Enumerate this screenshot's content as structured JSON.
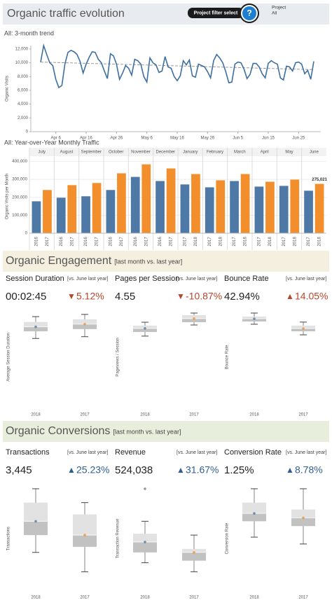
{
  "header": {
    "title": "Organic traffic evolution",
    "filter_button": "Project filter select",
    "help": "?",
    "filter_label": "Project",
    "filter_value": "All"
  },
  "chart_data": [
    {
      "type": "line",
      "title": "All: 3-month trend",
      "y_label": "Organic Visits",
      "color": "#3d6fa0",
      "trend_color": "#999",
      "x": [
        "Apr 1",
        "Apr 2",
        "Apr 3",
        "Apr 4",
        "Apr 5",
        "Apr 6",
        "Apr 7",
        "Apr 8",
        "Apr 9",
        "Apr 10",
        "Apr 11",
        "Apr 12",
        "Apr 13",
        "Apr 14",
        "Apr 15",
        "Apr 16",
        "Apr 17",
        "Apr 18",
        "Apr 19",
        "Apr 20",
        "Apr 21",
        "Apr 22",
        "Apr 23",
        "Apr 24",
        "Apr 25",
        "Apr 26",
        "Apr 27",
        "Apr 28",
        "Apr 29",
        "Apr 30",
        "May 1",
        "May 2",
        "May 3",
        "May 4",
        "May 5",
        "May 6",
        "May 7",
        "May 8",
        "May 9",
        "May 10",
        "May 11",
        "May 12",
        "May 13",
        "May 14",
        "May 15",
        "May 16",
        "May 17",
        "May 18",
        "May 19",
        "May 20",
        "May 21",
        "May 22",
        "May 23",
        "May 24",
        "May 25",
        "May 26",
        "May 27",
        "May 28",
        "May 29",
        "May 30",
        "May 31",
        "Jun 1",
        "Jun 2",
        "Jun 3",
        "Jun 4",
        "Jun 5",
        "Jun 6",
        "Jun 7",
        "Jun 8",
        "Jun 9",
        "Jun 10",
        "Jun 11",
        "Jun 12",
        "Jun 13",
        "Jun 14",
        "Jun 15",
        "Jun 16",
        "Jun 17",
        "Jun 18",
        "Jun 19",
        "Jun 20",
        "Jun 21",
        "Jun 22",
        "Jun 23",
        "Jun 24",
        "Jun 25",
        "Jun 26",
        "Jun 27",
        "Jun 28",
        "Jun 29",
        "Jun 30"
      ],
      "values": [
        10100,
        12500,
        11200,
        10000,
        9600,
        7600,
        6400,
        6700,
        9800,
        11500,
        11800,
        11600,
        11200,
        10200,
        8500,
        9800,
        10800,
        11600,
        11500,
        10500,
        10000,
        8800,
        7700,
        11300,
        11000,
        9800,
        7600,
        8500,
        9600,
        9200,
        8200,
        10500,
        10300,
        9800,
        8000,
        7200,
        10700,
        10000,
        9700,
        8600,
        8800,
        10900,
        9400,
        9200,
        8000,
        7400,
        8100,
        10300,
        9700,
        10400,
        8100,
        7900,
        9800,
        9600,
        9400,
        8700,
        7800,
        10300,
        11200,
        10700,
        10000,
        8700,
        7100,
        7200,
        9800,
        10100,
        10000,
        9100,
        7700,
        8300,
        9900,
        9900,
        9400,
        8400,
        7800,
        9900,
        10300,
        10000,
        9800,
        7800,
        7500,
        9500,
        9400,
        8800,
        10000,
        10100,
        9800,
        8400,
        8900,
        7600,
        10200
      ],
      "trend": [
        10100,
        9000
      ],
      "xticks": [
        "Apr 6",
        "Apr 16",
        "Apr 26",
        "May 6",
        "May 16",
        "May 26",
        "Jun 5",
        "Jun 15",
        "Jun 25"
      ],
      "ylim": [
        0,
        12500
      ],
      "yticks": [
        0,
        {
          "value": 2000,
          "label": "2,000"
        },
        {
          "value": 4000,
          "label": "4,000"
        },
        {
          "value": 6000,
          "label": "6,000"
        },
        {
          "value": 8000,
          "label": "8,000"
        },
        {
          "value": 10000,
          "label": "10,000"
        },
        {
          "value": 12000,
          "label": "12,000"
        }
      ]
    },
    {
      "type": "grouped_bar",
      "title": "All: Year-over-Year Monthly Traffic",
      "y_label": "Organic Visits per Month",
      "colors": [
        "#4e79a7",
        "#f28e2b"
      ],
      "ylim": [
        0,
        410000
      ],
      "yticks": [
        0,
        {
          "value": 100000,
          "label": "100,000"
        },
        {
          "value": 200000,
          "label": "200,000"
        },
        {
          "value": 300000,
          "label": "300,000"
        },
        {
          "value": 400000,
          "label": "400,000"
        }
      ],
      "grid": true,
      "groups": [
        {
          "label": "July",
          "bars": [
            {
              "year": "2016",
              "value": 178000
            },
            {
              "year": "2017",
              "value": 241000
            }
          ]
        },
        {
          "label": "August",
          "bars": [
            {
              "year": "2016",
              "value": 198000
            },
            {
              "year": "2017",
              "value": 268000
            }
          ]
        },
        {
          "label": "September",
          "bars": [
            {
              "year": "2016",
              "value": 206000
            },
            {
              "year": "2017",
              "value": 280000
            }
          ]
        },
        {
          "label": "October",
          "bars": [
            {
              "year": "2016",
              "value": 241000
            },
            {
              "year": "2017",
              "value": 334000
            }
          ]
        },
        {
          "label": "November",
          "bars": [
            {
              "year": "2016",
              "value": 314000
            },
            {
              "year": "2017",
              "value": 384000
            }
          ]
        },
        {
          "label": "December",
          "bars": [
            {
              "year": "2016",
              "value": 291000
            },
            {
              "year": "2017",
              "value": 361000
            }
          ]
        },
        {
          "label": "January",
          "bars": [
            {
              "year": "2017",
              "value": 272000
            },
            {
              "year": "2018",
              "value": 330000
            }
          ]
        },
        {
          "label": "February",
          "bars": [
            {
              "year": "2017",
              "value": 256000
            },
            {
              "year": "2018",
              "value": 295000
            }
          ]
        },
        {
          "label": "March",
          "bars": [
            {
              "year": "2017",
              "value": 291000
            },
            {
              "year": "2018",
              "value": 330000
            }
          ]
        },
        {
          "label": "April",
          "bars": [
            {
              "year": "2017",
              "value": 260000
            },
            {
              "year": "2018",
              "value": 287000
            }
          ]
        },
        {
          "label": "May",
          "bars": [
            {
              "year": "2017",
              "value": 264000
            },
            {
              "year": "2018",
              "value": 299000
            }
          ]
        },
        {
          "label": "June",
          "bars": [
            {
              "year": "2017",
              "value": 237000
            },
            {
              "year": "2018",
              "value": 275021,
              "value_label": "275,021"
            }
          ]
        }
      ]
    }
  ],
  "engagement": {
    "title": "Organic Engagement",
    "subtitle": "[last month vs. last year]",
    "background": "#f5efe0",
    "metrics": [
      {
        "name": "Session Duration",
        "compare": "[vs. June last year]",
        "value": "00:02:45",
        "arrow": "▼",
        "change": "5.12%",
        "change_color": "#b5462c",
        "axis_label": "Average Session Duration",
        "ylim": [
          0,
          220
        ],
        "categories": [
          "2018",
          "2017"
        ],
        "boxes": [
          {
            "min": 152,
            "q1": 168,
            "median": 178,
            "q3": 189,
            "max": 201
          },
          {
            "min": 156,
            "q1": 173,
            "median": 184,
            "q3": 195,
            "max": 206
          }
        ]
      },
      {
        "name": "Pages per Session",
        "compare": "[vs. June last year]",
        "value": "4.55",
        "arrow": "▼",
        "change": "-10.87%",
        "change_color": "#b5462c",
        "axis_label": "Pageviews / Session",
        "ylim": [
          0,
          6
        ],
        "categories": [
          "2018",
          "2017"
        ],
        "boxes": [
          {
            "min": 4.29,
            "q1": 4.54,
            "median": 4.76,
            "q3": 4.93,
            "max": 5.14
          },
          {
            "min": 4.97,
            "q1": 5.14,
            "median": 5.36,
            "q3": 5.57,
            "max": 5.7
          }
        ]
      },
      {
        "name": "Bounce Rate",
        "compare": "[vs. June last year]",
        "value": "42.94%",
        "arrow": "▲",
        "change": "14.05%",
        "change_color": "#b5462c",
        "axis_label": "Bounce Rate",
        "ylim": [
          0,
          50
        ],
        "categories": [
          "2018",
          "2017"
        ],
        "boxes": [
          {
            "min": 41.8,
            "q1": 43.2,
            "median": 44.6,
            "q3": 45.7,
            "max": 47.5
          },
          {
            "min": 36.4,
            "q1": 38.2,
            "median": 39.6,
            "q3": 41.1,
            "max": 42.9
          }
        ]
      }
    ]
  },
  "conversions": {
    "title": "Organic Conversions",
    "subtitle": "[last month vs. last year]",
    "background": "#e7eedc",
    "metrics": [
      {
        "name": "Transactions",
        "compare": "[vs. June last year]",
        "value": "3,445",
        "arrow": "▲",
        "change": "25.23%",
        "change_color": "#2f5f8f",
        "axis_label": "Transactions",
        "ylim": [
          1000,
          5000
        ],
        "categories": [
          "2018",
          "2017"
        ],
        "boxes": [
          {
            "min": 2500,
            "q1": 3125,
            "median": 3625,
            "q3": 4300,
            "max": 4800
          },
          {
            "min": 1800,
            "q1": 2700,
            "median": 3125,
            "q3": 3875,
            "max": 4300
          }
        ]
      },
      {
        "name": "Revenue",
        "compare": "[vs. June last year]",
        "value": "524,038",
        "arrow": "▲",
        "change": "31.67%",
        "change_color": "#2f5f8f",
        "axis_label": "Transaction Revenue",
        "ylim": [
          0,
          900000
        ],
        "categories": [
          "2018",
          "2017"
        ],
        "boxes": [
          {
            "min": 253125,
            "q1": 337500,
            "median": 421875,
            "q3": 489375,
            "max": 590625,
            "outliers": [
              855000
            ]
          },
          {
            "min": 180000,
            "q1": 270000,
            "median": 337500,
            "q3": 365625,
            "max": 478125
          }
        ]
      },
      {
        "name": "Conversion Rate",
        "compare": "[vs. June last year]",
        "value": "1.25%",
        "arrow": "▲",
        "change": "8.78%",
        "change_color": "#2f5f8f",
        "axis_label": "Conversion Rate",
        "ylim": [
          0.5,
          1.6
        ],
        "categories": [
          "2018",
          "2017"
        ],
        "boxes": [
          {
            "min": 1.064,
            "q1": 1.222,
            "median": 1.3,
            "q3": 1.4075,
            "max": 1.545
          },
          {
            "min": 0.996,
            "q1": 1.174,
            "median": 1.256,
            "q3": 1.339,
            "max": 1.545
          }
        ]
      }
    ]
  }
}
